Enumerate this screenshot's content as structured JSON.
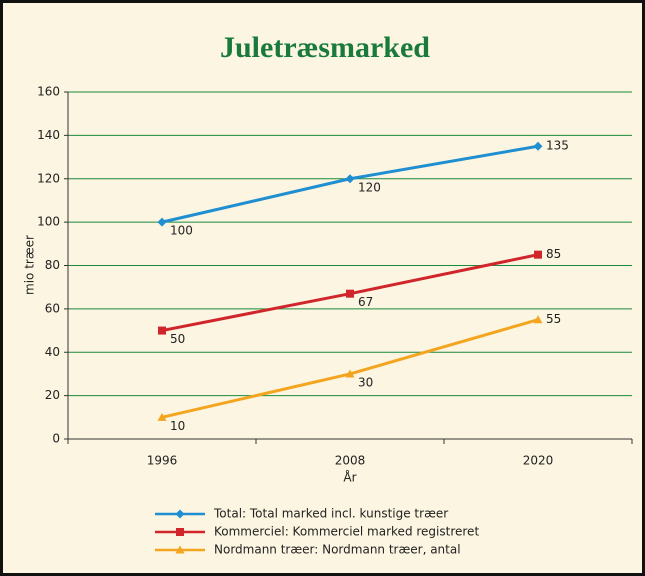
{
  "chart_data": {
    "type": "line",
    "title": "Juletræsmarked",
    "x_label": "År",
    "y_label": "mio træer",
    "categories": [
      "1996",
      "2008",
      "2020"
    ],
    "series": [
      {
        "name": "Total: Total marked incl. kunstige træer",
        "color": "#1f8fd1",
        "marker": "diamond",
        "values": [
          100,
          120,
          135
        ]
      },
      {
        "name": "Kommerciel: Kommerciel marked registreret",
        "color": "#d0252b",
        "marker": "square",
        "values": [
          50,
          67,
          85
        ]
      },
      {
        "name": "Nordmann træer: Nordmann træer, antal",
        "color": "#f3a51f",
        "marker": "triangle",
        "values": [
          10,
          30,
          55
        ]
      }
    ],
    "ylim": [
      0,
      160
    ],
    "yticks": [
      0,
      20,
      40,
      60,
      80,
      100,
      120,
      140,
      160
    ],
    "grid": true,
    "legend": "bottom"
  }
}
